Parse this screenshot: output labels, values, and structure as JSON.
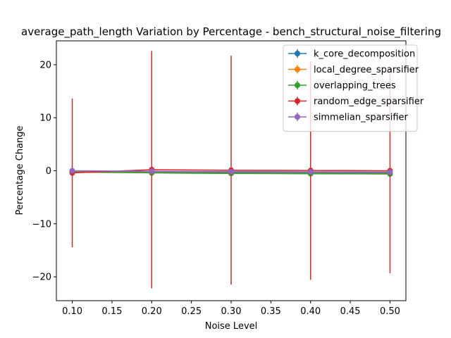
{
  "chart_data": {
    "type": "line",
    "title": "average_path_length Variation by Percentage - bench_structural_noise_filtering",
    "xlabel": "Noise Level",
    "ylabel": "Percentage Change",
    "xlim": [
      0.08,
      0.52
    ],
    "ylim": [
      -24.5,
      24.5
    ],
    "xticks": [
      0.1,
      0.15,
      0.2,
      0.25,
      0.3,
      0.35,
      0.4,
      0.45,
      0.5
    ],
    "xtick_labels": [
      "0.10",
      "0.15",
      "0.20",
      "0.25",
      "0.30",
      "0.35",
      "0.40",
      "0.45",
      "0.50"
    ],
    "yticks": [
      -20,
      -10,
      0,
      10,
      20
    ],
    "ytick_labels": [
      "−20",
      "−10",
      "0",
      "10",
      "20"
    ],
    "x": [
      0.1,
      0.2,
      0.3,
      0.4,
      0.5
    ],
    "grid": false,
    "legend_position": "top-right",
    "series": [
      {
        "name": "k_core_decomposition",
        "color": "#1f77b4",
        "values": [
          -0.1,
          -0.2,
          -0.3,
          -0.35,
          -0.4
        ],
        "errors": [
          0.05,
          0.05,
          0.05,
          0.05,
          0.05
        ]
      },
      {
        "name": "local_degree_sparsifier",
        "color": "#ff7f0e",
        "values": [
          -0.2,
          -0.35,
          -0.45,
          -0.5,
          -0.55
        ],
        "errors": [
          0.05,
          0.05,
          0.05,
          0.05,
          0.05
        ]
      },
      {
        "name": "overlapping_trees",
        "color": "#2ca02c",
        "values": [
          -0.25,
          -0.4,
          -0.5,
          -0.55,
          -0.6
        ],
        "errors": [
          0.05,
          0.05,
          0.05,
          0.05,
          0.05
        ]
      },
      {
        "name": "random_edge_sparsifier",
        "color": "#d62728",
        "values": [
          -0.4,
          0.2,
          0.1,
          0.05,
          0.0
        ],
        "errors": [
          14.0,
          22.4,
          21.6,
          20.6,
          19.3
        ]
      },
      {
        "name": "simmelian_sparsifier",
        "color": "#9467bd",
        "values": [
          0.0,
          -0.1,
          -0.15,
          -0.2,
          -0.25
        ],
        "errors": [
          0.05,
          0.05,
          0.05,
          0.05,
          0.05
        ]
      }
    ]
  }
}
